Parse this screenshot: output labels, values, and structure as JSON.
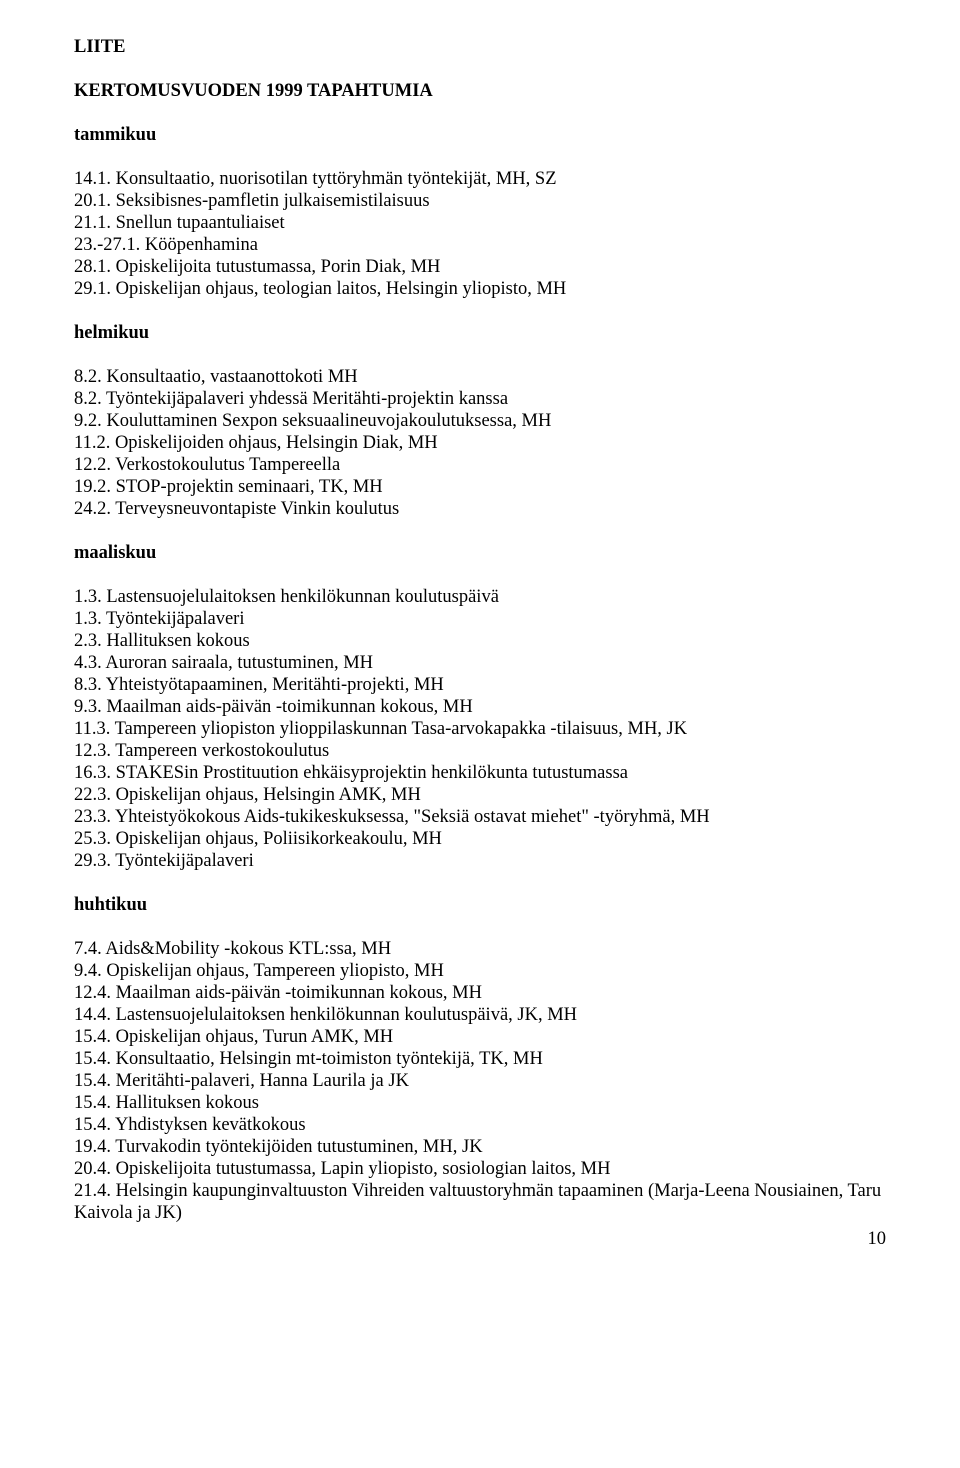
{
  "doc": {
    "title": "LIITE",
    "subtitle": "KERTOMUSVUODEN 1999 TAPAHTUMIA",
    "page_number": "10"
  },
  "months": {
    "tammikuu": {
      "heading": "tammikuu",
      "items": [
        "14.1. Konsultaatio, nuorisotilan tyttöryhmän työntekijät, MH, SZ",
        "20.1. Seksibisnes-pamfletin julkaisemistilaisuus",
        "21.1. Snellun tupaantuliaiset",
        "23.-27.1. Kööpenhamina",
        "28.1. Opiskelijoita tutustumassa, Porin Diak, MH",
        "29.1. Opiskelijan ohjaus, teologian laitos, Helsingin yliopisto, MH"
      ]
    },
    "helmikuu": {
      "heading": "helmikuu",
      "items": [
        "8.2. Konsultaatio, vastaanottokoti MH",
        "8.2. Työntekijäpalaveri yhdessä Meritähti-projektin kanssa",
        "9.2. Kouluttaminen Sexpon seksuaalineuvojakoulutuksessa, MH",
        "11.2. Opiskelijoiden ohjaus, Helsingin Diak, MH",
        "12.2. Verkostokoulutus Tampereella",
        "19.2. STOP-projektin seminaari, TK, MH",
        "24.2. Terveysneuvontapiste Vinkin koulutus"
      ]
    },
    "maaliskuu": {
      "heading": "maaliskuu",
      "items": [
        "1.3. Lastensuojelulaitoksen henkilökunnan koulutuspäivä",
        "1.3. Työntekijäpalaveri",
        "2.3. Hallituksen kokous",
        "4.3. Auroran sairaala, tutustuminen, MH",
        "8.3. Yhteistyötapaaminen, Meritähti-projekti, MH",
        "9.3. Maailman aids-päivän -toimikunnan kokous, MH",
        "11.3. Tampereen yliopiston ylioppilaskunnan Tasa-arvokapakka -tilaisuus, MH, JK",
        "12.3. Tampereen verkostokoulutus",
        "16.3. STAKESin Prostituution ehkäisyprojektin henkilökunta tutustumassa",
        "22.3. Opiskelijan ohjaus, Helsingin AMK, MH",
        "23.3. Yhteistyökokous Aids-tukikeskuksessa, \"Seksiä ostavat miehet\" -työryhmä, MH",
        "25.3. Opiskelijan ohjaus, Poliisikorkeakoulu, MH",
        "29.3. Työntekijäpalaveri"
      ]
    },
    "huhtikuu": {
      "heading": "huhtikuu",
      "items": [
        "7.4. Aids&Mobility -kokous KTL:ssa, MH",
        "9.4. Opiskelijan ohjaus, Tampereen yliopisto, MH",
        "12.4. Maailman aids-päivän -toimikunnan kokous, MH",
        "14.4. Lastensuojelulaitoksen henkilökunnan koulutuspäivä, JK, MH",
        "15.4. Opiskelijan ohjaus, Turun AMK, MH",
        "15.4. Konsultaatio, Helsingin mt-toimiston työntekijä, TK, MH",
        "15.4. Meritähti-palaveri, Hanna Laurila ja JK",
        "15.4. Hallituksen kokous",
        "15.4. Yhdistyksen kevätkokous",
        "19.4. Turvakodin työntekijöiden tutustuminen, MH, JK",
        "20.4. Opiskelijoita tutustumassa, Lapin yliopisto, sosiologian laitos, MH",
        "21.4. Helsingin kaupunginvaltuuston Vihreiden valtuustoryhmän tapaaminen (Marja-Leena Nousiainen, Taru Kaivola ja JK)"
      ]
    }
  }
}
